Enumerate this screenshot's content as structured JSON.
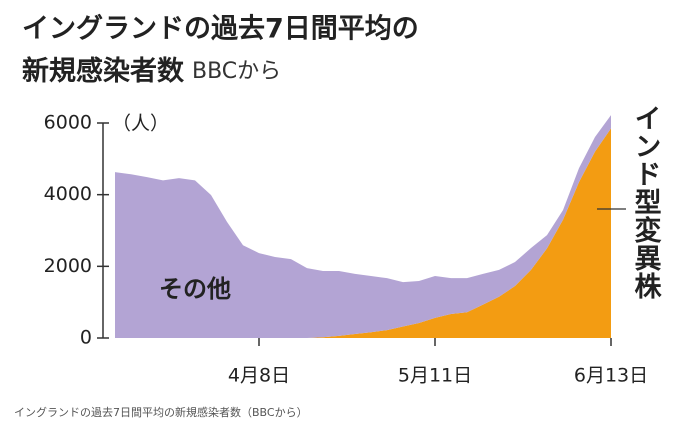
{
  "chart_data": {
    "type": "stacked_area",
    "title": [
      "イングランドの過去7日間平均の",
      "新規感染者数"
    ],
    "source": "BBCから",
    "y_unit": "（人）",
    "caption": "イングランドの過去7日間平均の新規感染者数（BBCから）",
    "categories": [
      null,
      null,
      null,
      null,
      null,
      null,
      null,
      null,
      null,
      "4月8日",
      null,
      null,
      null,
      null,
      null,
      null,
      null,
      null,
      null,
      null,
      "5月11日",
      null,
      null,
      null,
      null,
      null,
      null,
      null,
      null,
      null,
      null,
      "6月13日"
    ],
    "series": [
      {
        "name": "インド型変異株",
        "color": "#f39c12",
        "values": [
          0,
          0,
          0,
          0,
          0,
          0,
          0,
          0,
          0,
          0,
          0,
          0,
          0,
          20,
          60,
          110,
          160,
          220,
          320,
          420,
          560,
          670,
          720,
          930,
          1150,
          1450,
          1900,
          2500,
          3300,
          4350,
          5200,
          5850
        ]
      },
      {
        "name": "その他",
        "color": "#b3a4d4",
        "values": [
          4630,
          4570,
          4490,
          4400,
          4460,
          4400,
          3990,
          3240,
          2590,
          2370,
          2260,
          2200,
          1950,
          1850,
          1810,
          1680,
          1570,
          1450,
          1240,
          1170,
          1170,
          1000,
          950,
          860,
          750,
          670,
          610,
          370,
          270,
          390,
          410,
          370
        ]
      }
    ],
    "ylim": [
      0,
      6000
    ],
    "yticks": [
      0,
      2000,
      4000,
      6000
    ]
  }
}
